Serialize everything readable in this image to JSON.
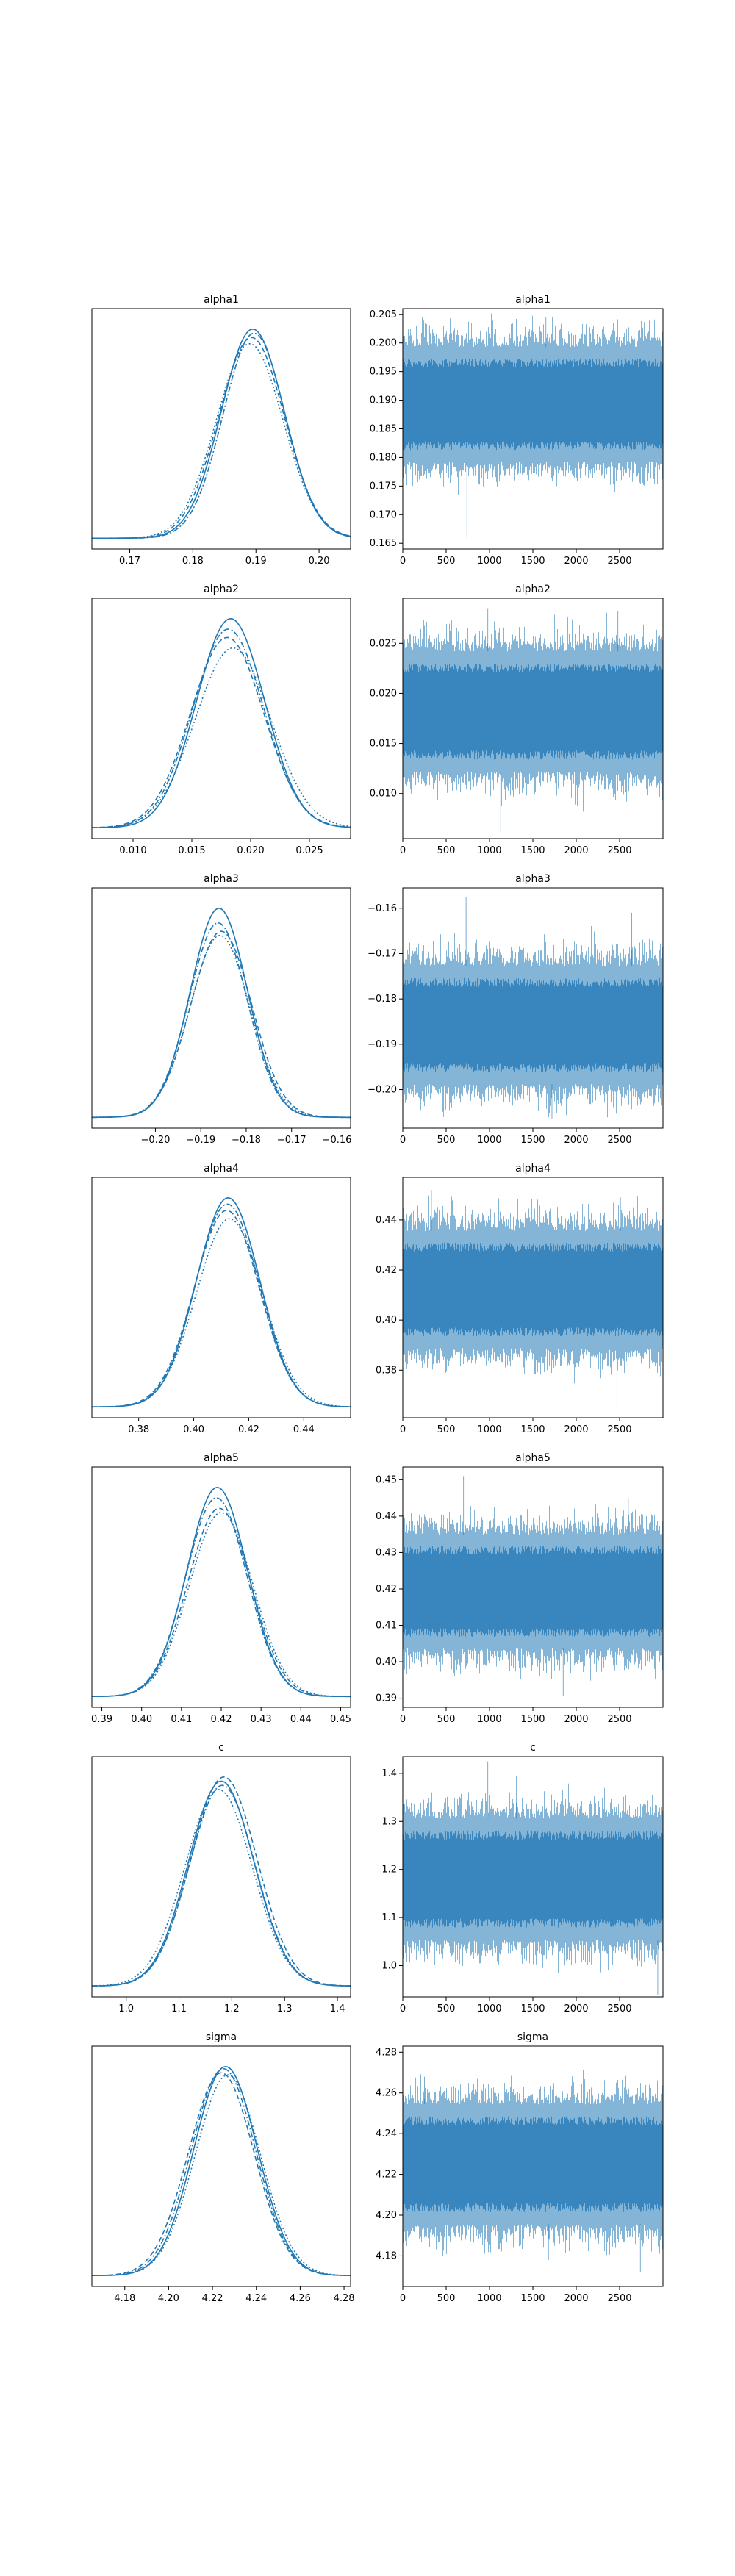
{
  "figure": {
    "type": "trace_plot",
    "line_color": "#1f77b4",
    "chain_line_styles": [
      "solid",
      "dashed",
      "dotted",
      "dashdot"
    ]
  },
  "chart_data": [
    {
      "type": "line",
      "subtype": "kde",
      "title": "alpha1",
      "xlim": [
        0.164,
        0.205
      ],
      "xticks": [
        0.17,
        0.18,
        0.19,
        0.2
      ],
      "xtick_labels": [
        "0.17",
        "0.18",
        "0.19",
        "0.20"
      ],
      "series": [
        {
          "mean": 0.1895,
          "sd": 0.005,
          "peak": 1.0
        },
        {
          "mean": 0.1893,
          "sd": 0.0052,
          "peak": 0.96
        },
        {
          "mean": 0.189,
          "sd": 0.0053,
          "peak": 0.93
        },
        {
          "mean": 0.1897,
          "sd": 0.0049,
          "peak": 0.98
        }
      ]
    },
    {
      "type": "line",
      "subtype": "trace",
      "title": "alpha1",
      "xlim": [
        0,
        3000
      ],
      "ylim": [
        0.164,
        0.206
      ],
      "xticks": [
        0,
        500,
        1000,
        1500,
        2000,
        2500
      ],
      "yticks": [
        0.165,
        0.17,
        0.175,
        0.18,
        0.185,
        0.19,
        0.195,
        0.2,
        0.205
      ],
      "ytick_labels": [
        "0.165",
        "0.170",
        "0.175",
        "0.180",
        "0.185",
        "0.190",
        "0.195",
        "0.200",
        "0.205"
      ],
      "band_mean": 0.1893,
      "band_sd": 0.005,
      "spikes": [
        {
          "x": 740,
          "y": 0.166
        },
        {
          "x": 1650,
          "y": 0.2045
        },
        {
          "x": 300,
          "y": 0.203
        }
      ]
    },
    {
      "type": "line",
      "subtype": "kde",
      "title": "alpha2",
      "xlim": [
        0.0065,
        0.0285
      ],
      "xticks": [
        0.01,
        0.015,
        0.02,
        0.025
      ],
      "xtick_labels": [
        "0.010",
        "0.015",
        "0.020",
        "0.025"
      ],
      "series": [
        {
          "mean": 0.0183,
          "sd": 0.0029,
          "peak": 1.0
        },
        {
          "mean": 0.018,
          "sd": 0.0031,
          "peak": 0.91
        },
        {
          "mean": 0.0185,
          "sd": 0.0032,
          "peak": 0.86
        },
        {
          "mean": 0.0181,
          "sd": 0.003,
          "peak": 0.95
        }
      ]
    },
    {
      "type": "line",
      "subtype": "trace",
      "title": "alpha2",
      "xlim": [
        0,
        3000
      ],
      "ylim": [
        0.0055,
        0.0295
      ],
      "xticks": [
        0,
        500,
        1000,
        1500,
        2000,
        2500
      ],
      "yticks": [
        0.01,
        0.015,
        0.02,
        0.025
      ],
      "ytick_labels": [
        "0.010",
        "0.015",
        "0.020",
        "0.025"
      ],
      "band_mean": 0.0182,
      "band_sd": 0.003,
      "spikes": [
        {
          "x": 980,
          "y": 0.0285
        },
        {
          "x": 1130,
          "y": 0.0062
        },
        {
          "x": 2480,
          "y": 0.0282
        }
      ]
    },
    {
      "type": "line",
      "subtype": "kde",
      "title": "alpha3",
      "xlim": [
        -0.214,
        -0.157
      ],
      "xticks": [
        -0.2,
        -0.19,
        -0.18,
        -0.17,
        -0.16
      ],
      "xtick_labels": [
        "−0.20",
        "−0.19",
        "−0.18",
        "−0.17",
        "−0.16"
      ],
      "series": [
        {
          "mean": -0.186,
          "sd": 0.0063,
          "peak": 1.0
        },
        {
          "mean": -0.1855,
          "sd": 0.0067,
          "peak": 0.89
        },
        {
          "mean": -0.1858,
          "sd": 0.0066,
          "peak": 0.87
        },
        {
          "mean": -0.1862,
          "sd": 0.0064,
          "peak": 0.93
        }
      ]
    },
    {
      "type": "line",
      "subtype": "trace",
      "title": "alpha3",
      "xlim": [
        0,
        3000
      ],
      "ylim": [
        -0.2085,
        -0.1555
      ],
      "xticks": [
        0,
        500,
        1000,
        1500,
        2000,
        2500
      ],
      "yticks": [
        -0.2,
        -0.19,
        -0.18,
        -0.17,
        -0.16
      ],
      "ytick_labels": [
        "−0.20",
        "−0.19",
        "−0.18",
        "−0.17",
        "−0.16"
      ],
      "band_mean": -0.1858,
      "band_sd": 0.0065,
      "spikes": [
        {
          "x": 730,
          "y": -0.1575
        },
        {
          "x": 1720,
          "y": -0.2065
        },
        {
          "x": 2640,
          "y": -0.161
        }
      ]
    },
    {
      "type": "line",
      "subtype": "kde",
      "title": "alpha4",
      "xlim": [
        0.363,
        0.457
      ],
      "xticks": [
        0.38,
        0.4,
        0.42,
        0.44
      ],
      "xtick_labels": [
        "0.38",
        "0.40",
        "0.42",
        "0.44"
      ],
      "series": [
        {
          "mean": 0.4125,
          "sd": 0.0115,
          "peak": 1.0
        },
        {
          "mean": 0.412,
          "sd": 0.0118,
          "peak": 0.94
        },
        {
          "mean": 0.413,
          "sd": 0.012,
          "peak": 0.9
        },
        {
          "mean": 0.4122,
          "sd": 0.0116,
          "peak": 0.97
        }
      ]
    },
    {
      "type": "line",
      "subtype": "trace",
      "title": "alpha4",
      "xlim": [
        0,
        3000
      ],
      "ylim": [
        0.361,
        0.457
      ],
      "xticks": [
        0,
        500,
        1000,
        1500,
        2000,
        2500
      ],
      "yticks": [
        0.38,
        0.4,
        0.42,
        0.44
      ],
      "ytick_labels": [
        "0.38",
        "0.40",
        "0.42",
        "0.44"
      ],
      "band_mean": 0.4122,
      "band_sd": 0.0117,
      "spikes": [
        {
          "x": 330,
          "y": 0.452
        },
        {
          "x": 2470,
          "y": 0.365
        },
        {
          "x": 2510,
          "y": 0.449
        }
      ]
    },
    {
      "type": "line",
      "subtype": "kde",
      "title": "alpha5",
      "xlim": [
        0.3875,
        0.4525
      ],
      "xticks": [
        0.39,
        0.4,
        0.41,
        0.42,
        0.43,
        0.44,
        0.45
      ],
      "xtick_labels": [
        "0.39",
        "0.40",
        "0.41",
        "0.42",
        "0.43",
        "0.44",
        "0.45"
      ],
      "series": [
        {
          "mean": 0.419,
          "sd": 0.0076,
          "peak": 1.0
        },
        {
          "mean": 0.4195,
          "sd": 0.0079,
          "peak": 0.9
        },
        {
          "mean": 0.42,
          "sd": 0.008,
          "peak": 0.88
        },
        {
          "mean": 0.4188,
          "sd": 0.0077,
          "peak": 0.95
        }
      ]
    },
    {
      "type": "line",
      "subtype": "trace",
      "title": "alpha5",
      "xlim": [
        0,
        3000
      ],
      "ylim": [
        0.3875,
        0.4535
      ],
      "xticks": [
        0,
        500,
        1000,
        1500,
        2000,
        2500
      ],
      "yticks": [
        0.39,
        0.4,
        0.41,
        0.42,
        0.43,
        0.44,
        0.45
      ],
      "ytick_labels": [
        "0.39",
        "0.40",
        "0.41",
        "0.42",
        "0.43",
        "0.44",
        "0.45"
      ],
      "band_mean": 0.4193,
      "band_sd": 0.0078,
      "spikes": [
        {
          "x": 700,
          "y": 0.451
        },
        {
          "x": 1850,
          "y": 0.3905
        },
        {
          "x": 2600,
          "y": 0.445
        }
      ]
    },
    {
      "type": "line",
      "subtype": "kde",
      "title": "c",
      "xlim": [
        0.935,
        1.425
      ],
      "xticks": [
        1.0,
        1.1,
        1.2,
        1.3,
        1.4
      ],
      "xtick_labels": [
        "1.0",
        "1.1",
        "1.2",
        "1.3",
        "1.4"
      ],
      "series": [
        {
          "mean": 1.18,
          "sd": 0.062,
          "peak": 0.98
        },
        {
          "mean": 1.185,
          "sd": 0.063,
          "peak": 1.0
        },
        {
          "mean": 1.175,
          "sd": 0.064,
          "peak": 0.94
        },
        {
          "mean": 1.182,
          "sd": 0.062,
          "peak": 0.96
        }
      ]
    },
    {
      "type": "line",
      "subtype": "trace",
      "title": "c",
      "xlim": [
        0,
        3000
      ],
      "ylim": [
        0.935,
        1.435
      ],
      "xticks": [
        0,
        500,
        1000,
        1500,
        2000,
        2500
      ],
      "yticks": [
        1.0,
        1.1,
        1.2,
        1.3,
        1.4
      ],
      "ytick_labels": [
        "1.0",
        "1.1",
        "1.2",
        "1.3",
        "1.4"
      ],
      "band_mean": 1.18,
      "band_sd": 0.063,
      "spikes": [
        {
          "x": 980,
          "y": 1.425
        },
        {
          "x": 2940,
          "y": 0.94
        },
        {
          "x": 1310,
          "y": 1.395
        }
      ]
    },
    {
      "type": "line",
      "subtype": "kde",
      "title": "sigma",
      "xlim": [
        4.165,
        4.283
      ],
      "xticks": [
        4.18,
        4.2,
        4.22,
        4.24,
        4.26,
        4.28
      ],
      "xtick_labels": [
        "4.18",
        "4.20",
        "4.22",
        "4.24",
        "4.26",
        "4.28"
      ],
      "series": [
        {
          "mean": 4.226,
          "sd": 0.0145,
          "peak": 1.0
        },
        {
          "mean": 4.224,
          "sd": 0.015,
          "peak": 0.97
        },
        {
          "mean": 4.227,
          "sd": 0.0148,
          "peak": 0.96
        },
        {
          "mean": 4.225,
          "sd": 0.0147,
          "peak": 0.99
        }
      ]
    },
    {
      "type": "line",
      "subtype": "trace",
      "title": "sigma",
      "xlim": [
        0,
        3000
      ],
      "ylim": [
        4.165,
        4.283
      ],
      "xticks": [
        0,
        500,
        1000,
        1500,
        2000,
        2500
      ],
      "yticks": [
        4.18,
        4.2,
        4.22,
        4.24,
        4.26,
        4.28
      ],
      "ytick_labels": [
        "4.18",
        "4.20",
        "4.22",
        "4.24",
        "4.26",
        "4.28"
      ],
      "band_mean": 4.225,
      "band_sd": 0.0147,
      "spikes": [
        {
          "x": 2740,
          "y": 4.172
        },
        {
          "x": 250,
          "y": 4.268
        },
        {
          "x": 1680,
          "y": 4.178
        }
      ]
    }
  ]
}
